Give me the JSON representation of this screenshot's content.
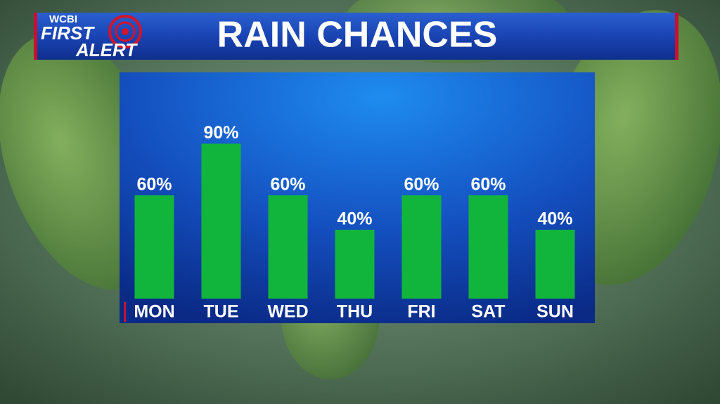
{
  "logo": {
    "station": "WCBI",
    "line1": "FIRST",
    "line2": "ALERT"
  },
  "chart_data": {
    "type": "bar",
    "title": "RAIN CHANCES",
    "categories": [
      "MON",
      "TUE",
      "WED",
      "THU",
      "FRI",
      "SAT",
      "SUN"
    ],
    "values": [
      60,
      90,
      60,
      40,
      60,
      60,
      40
    ],
    "value_labels": [
      "60%",
      "90%",
      "60%",
      "40%",
      "60%",
      "60%",
      "40%"
    ],
    "color": "#12b53c"
  }
}
